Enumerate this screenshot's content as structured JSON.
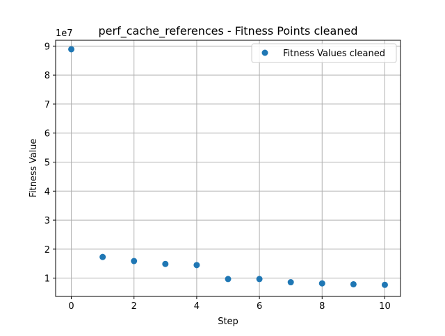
{
  "chart_data": {
    "type": "scatter",
    "title": "perf_cache_references - Fitness Points cleaned",
    "xlabel": "Step",
    "ylabel": "Fitness Value",
    "y_offset_label": "1e7",
    "xlim": [
      -0.5,
      10.5
    ],
    "ylim": [
      3700000,
      92000000
    ],
    "x_ticks": [
      0,
      2,
      4,
      6,
      8,
      10
    ],
    "x_tick_labels": [
      "0",
      "2",
      "4",
      "6",
      "8",
      "10"
    ],
    "y_ticks": [
      10000000,
      20000000,
      30000000,
      40000000,
      50000000,
      60000000,
      70000000,
      80000000,
      90000000
    ],
    "y_tick_labels": [
      "1",
      "2",
      "3",
      "4",
      "5",
      "6",
      "7",
      "8",
      "9"
    ],
    "grid": true,
    "legend_position": "top-right",
    "series": [
      {
        "name": "Fitness Values cleaned",
        "color": "#1f77b4",
        "x": [
          0,
          1,
          2,
          3,
          4,
          5,
          6,
          7,
          8,
          9,
          10
        ],
        "y": [
          88900000,
          17300000,
          15900000,
          14900000,
          14500000,
          9700000,
          9700000,
          8600000,
          8200000,
          7900000,
          7700000
        ]
      }
    ]
  }
}
